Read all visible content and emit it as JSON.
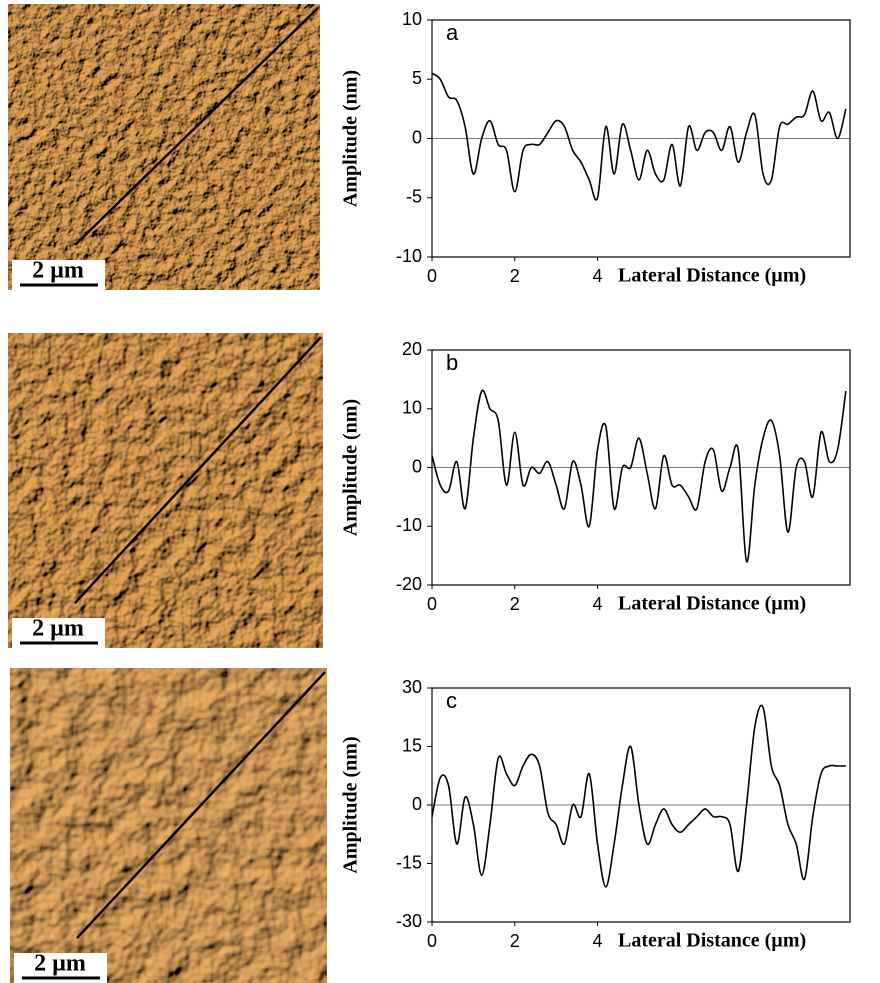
{
  "chart_data": [
    {
      "type": "line",
      "panel_label": "a",
      "scale_bar": "2 µm",
      "y_label": "Amplitude (nm)",
      "x_label": "Lateral Distance (µm)",
      "color": "#000000",
      "x": [
        0,
        0.2,
        0.4,
        0.6,
        0.8,
        1,
        1.2,
        1.4,
        1.6,
        1.8,
        2,
        2.2,
        2.4,
        2.6,
        2.8,
        3,
        3.2,
        3.4,
        3.6,
        3.8,
        4,
        4.2,
        4.4,
        4.6,
        4.8,
        5,
        5.2,
        5.4,
        5.6,
        5.8,
        6,
        6.2,
        6.4,
        6.6,
        6.8,
        7,
        7.2,
        7.4,
        7.6,
        7.8,
        8,
        8.2,
        8.4,
        8.6,
        8.8,
        9,
        9.2,
        9.4,
        9.6,
        9.8,
        10
      ],
      "values": [
        5.5,
        5,
        3.5,
        3.2,
        1,
        -3,
        0,
        1.5,
        -0.5,
        -1,
        -4.5,
        -1,
        -0.5,
        -0.5,
        0.5,
        1.5,
        1,
        -1,
        -2,
        -3.5,
        -5,
        1,
        -3,
        1.2,
        -1,
        -3.5,
        -1,
        -3,
        -3.5,
        -0.5,
        -4,
        1,
        -1,
        0.5,
        0.5,
        -1,
        1,
        -2,
        0.5,
        2,
        -3,
        -3.5,
        1,
        1.2,
        1.8,
        2,
        4,
        1.5,
        2.2,
        0,
        2.5
      ],
      "xlim": [
        0,
        10.1
      ],
      "xticks": [
        0,
        2,
        4
      ],
      "ylim": [
        -10,
        10
      ],
      "yticks": [
        -10,
        -5,
        0,
        5,
        10
      ]
    },
    {
      "type": "line",
      "panel_label": "b",
      "scale_bar": "2 µm",
      "y_label": "Amplitude (nm)",
      "x_label": "Lateral Distance (µm)",
      "color": "#000000",
      "x": [
        0,
        0.2,
        0.4,
        0.6,
        0.8,
        1,
        1.2,
        1.4,
        1.6,
        1.8,
        2,
        2.2,
        2.4,
        2.6,
        2.8,
        3,
        3.2,
        3.4,
        3.6,
        3.8,
        4,
        4.2,
        4.4,
        4.6,
        4.8,
        5,
        5.2,
        5.4,
        5.6,
        5.8,
        6,
        6.2,
        6.4,
        6.6,
        6.8,
        7,
        7.2,
        7.4,
        7.6,
        7.8,
        8,
        8.2,
        8.4,
        8.6,
        8.8,
        9,
        9.2,
        9.4,
        9.6,
        9.8,
        10
      ],
      "values": [
        2,
        -3,
        -4,
        1,
        -7,
        5,
        13,
        10,
        8,
        -3,
        6,
        -3,
        0,
        -1,
        1,
        -3,
        -7,
        1,
        -3,
        -10,
        3,
        7,
        -7,
        0,
        0,
        5,
        -1,
        -7,
        2,
        -3,
        -3,
        -5,
        -7,
        1,
        3,
        -4,
        0,
        3,
        -16,
        -3,
        5,
        8,
        2,
        -11,
        0,
        1,
        -5,
        6,
        1,
        3,
        13
      ],
      "xlim": [
        0,
        10.1
      ],
      "xticks": [
        0,
        2,
        4
      ],
      "ylim": [
        -20,
        20
      ],
      "yticks": [
        -20,
        -10,
        0,
        10,
        20
      ]
    },
    {
      "type": "line",
      "panel_label": "c",
      "scale_bar": "2 µm",
      "y_label": "Amplitude (nm)",
      "x_label": "Lateral Distance (µm)",
      "color": "#000000",
      "x": [
        0,
        0.2,
        0.4,
        0.6,
        0.8,
        1,
        1.2,
        1.4,
        1.6,
        1.8,
        2,
        2.2,
        2.4,
        2.6,
        2.8,
        3,
        3.2,
        3.4,
        3.6,
        3.8,
        4,
        4.2,
        4.4,
        4.6,
        4.8,
        5,
        5.2,
        5.4,
        5.6,
        5.8,
        6,
        6.2,
        6.4,
        6.6,
        6.8,
        7,
        7.2,
        7.4,
        7.6,
        7.8,
        8,
        8.2,
        8.4,
        8.6,
        8.8,
        9,
        9.2,
        9.4,
        9.6,
        9.8,
        10
      ],
      "values": [
        -3,
        7,
        5,
        -10,
        2,
        -5,
        -18,
        -5,
        12,
        8,
        5,
        10,
        13,
        10,
        -2,
        -5,
        -10,
        0,
        -3,
        8,
        -10,
        -21,
        -10,
        5,
        15,
        0,
        -10,
        -5,
        -1,
        -5,
        -7,
        -5,
        -3,
        -1,
        -3,
        -3,
        -5,
        -17,
        0,
        20,
        25,
        10,
        5,
        -5,
        -10,
        -19,
        -3,
        8,
        10,
        10,
        10
      ],
      "xlim": [
        0,
        10.1
      ],
      "xticks": [
        0,
        2,
        4
      ],
      "ylim": [
        -30,
        30
      ],
      "yticks": [
        -30,
        -15,
        0,
        15,
        30
      ]
    }
  ]
}
